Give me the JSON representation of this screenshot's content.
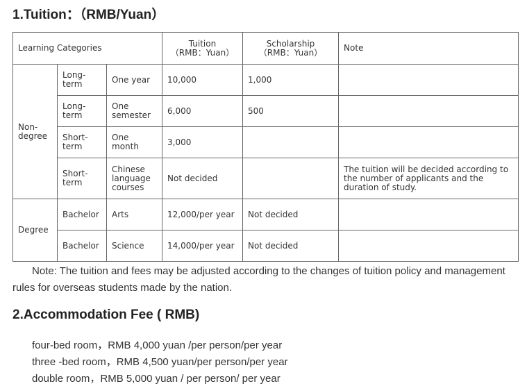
{
  "tuition": {
    "heading": "1.Tuition：（RMB/Yuan）",
    "headers": {
      "category": "Learning Categories",
      "tuition": "Tuition",
      "tuition_unit": "（RMB：Yuan）",
      "scholarship": "Scholarship",
      "scholarship_unit": "（RMB：Yuan）",
      "note": "Note"
    },
    "groups": {
      "nondegree": "Non-degree",
      "degree": "Degree"
    },
    "rows": [
      {
        "type": "Long-term",
        "duration": "One year",
        "tuition": "10,000",
        "scholarship": "1,000",
        "note": ""
      },
      {
        "type": "Long-term",
        "duration": "One semester",
        "tuition": "6,000",
        "scholarship": "500",
        "note": ""
      },
      {
        "type": "Short-term",
        "duration": "One month",
        "tuition": "3,000",
        "scholarship": "",
        "note": ""
      },
      {
        "type": "Short-term",
        "duration": "Chinese language courses",
        "tuition": "Not decided",
        "scholarship": "",
        "note": "The tuition will be decided according to the number of applicants and the duration of study."
      },
      {
        "type": "Bachelor",
        "duration": "Arts",
        "tuition": "12,000/per year",
        "scholarship": "Not decided",
        "note": ""
      },
      {
        "type": "Bachelor",
        "duration": "Science",
        "tuition": "14,000/per year",
        "scholarship": "Not decided",
        "note": ""
      }
    ],
    "footnote": "Note: The tuition and fees may be adjusted according to the changes of tuition policy and management rules for overseas students made by the nation."
  },
  "accommodation": {
    "heading": "2.Accommodation Fee ( RMB)",
    "items": [
      "four-bed room，RMB 4,000 yuan /per person/per year",
      "three -bed room，RMB 4,500 yuan/per person/per year",
      "double room，RMB 5,000 yuan / per person/ per year"
    ]
  }
}
